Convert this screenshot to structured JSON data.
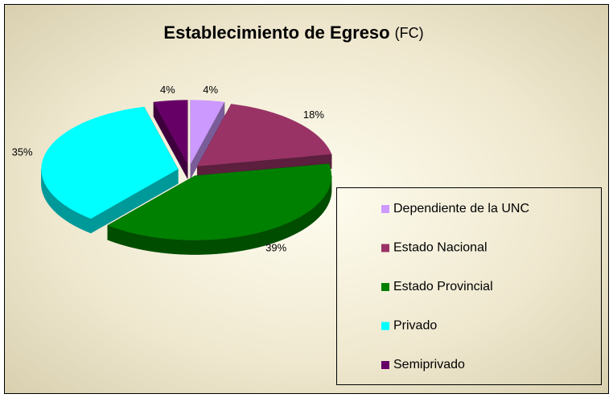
{
  "chart_data": {
    "type": "pie3d",
    "title": "Establecimiento de Egreso",
    "subtitle": "(FC)",
    "categories": [
      "Dependiente de la UNC",
      "Estado Nacional",
      "Estado Provincial",
      "Privado",
      "Semiprivado"
    ],
    "values": [
      4,
      18,
      39,
      35,
      4
    ],
    "value_labels": [
      "4%",
      "18%",
      "39%",
      "35%",
      "4%"
    ],
    "colors": [
      "#cc99ff",
      "#993366",
      "#008000",
      "#00ffff",
      "#660066"
    ],
    "legend": "right"
  }
}
